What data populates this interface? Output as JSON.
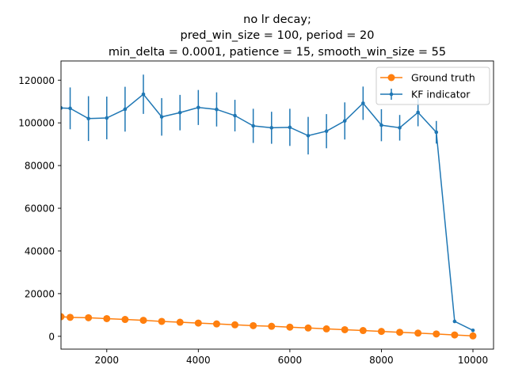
{
  "chart_data": {
    "type": "line",
    "title_lines": [
      "no lr decay;",
      "pred_win_size = 100, period = 20",
      "min_delta = 0.0001, patience = 15, smooth_win_size = 55"
    ],
    "xlabel": "",
    "ylabel": "",
    "xlim": [
      1000,
      10450
    ],
    "ylim": [
      -6000,
      129000
    ],
    "x_ticks": [
      2000,
      4000,
      6000,
      8000,
      10000
    ],
    "y_ticks": [
      0,
      20000,
      40000,
      60000,
      80000,
      100000,
      120000
    ],
    "grid": false,
    "legend_position": "upper right",
    "series": [
      {
        "name": "Ground truth",
        "color": "#ff7f0e",
        "marker": "circle-large",
        "x": [
          1000,
          1200,
          1600,
          2000,
          2400,
          2800,
          3200,
          3600,
          4000,
          4400,
          4800,
          5200,
          5600,
          6000,
          6400,
          6800,
          7200,
          7600,
          8000,
          8400,
          8800,
          9200,
          9600,
          10000
        ],
        "y": [
          9200,
          8900,
          8700,
          8300,
          7900,
          7500,
          7000,
          6600,
          6200,
          5800,
          5400,
          5000,
          4700,
          4300,
          3900,
          3500,
          3100,
          2700,
          2300,
          1900,
          1500,
          1100,
          650,
          200
        ]
      },
      {
        "name": "KF indicator",
        "color": "#1f77b4",
        "marker": "point",
        "x": [
          1000,
          1200,
          1600,
          2000,
          2400,
          2800,
          3200,
          3600,
          4000,
          4400,
          4800,
          5200,
          5600,
          6000,
          6400,
          6800,
          7200,
          7600,
          8000,
          8400,
          8800,
          9200,
          9600,
          10000
        ],
        "y": [
          107000,
          106800,
          102000,
          102300,
          106400,
          113400,
          102800,
          104800,
          107200,
          106300,
          103400,
          98600,
          97700,
          97900,
          94000,
          96100,
          100900,
          109200,
          98900,
          97700,
          104900,
          95600,
          7000,
          2800
        ],
        "yerr": [
          0,
          9800,
          10500,
          10000,
          10500,
          9200,
          8800,
          8300,
          8200,
          8000,
          7400,
          8000,
          7500,
          8700,
          8800,
          8000,
          8700,
          7800,
          7500,
          6000,
          6500,
          5300,
          0,
          0
        ]
      }
    ]
  }
}
